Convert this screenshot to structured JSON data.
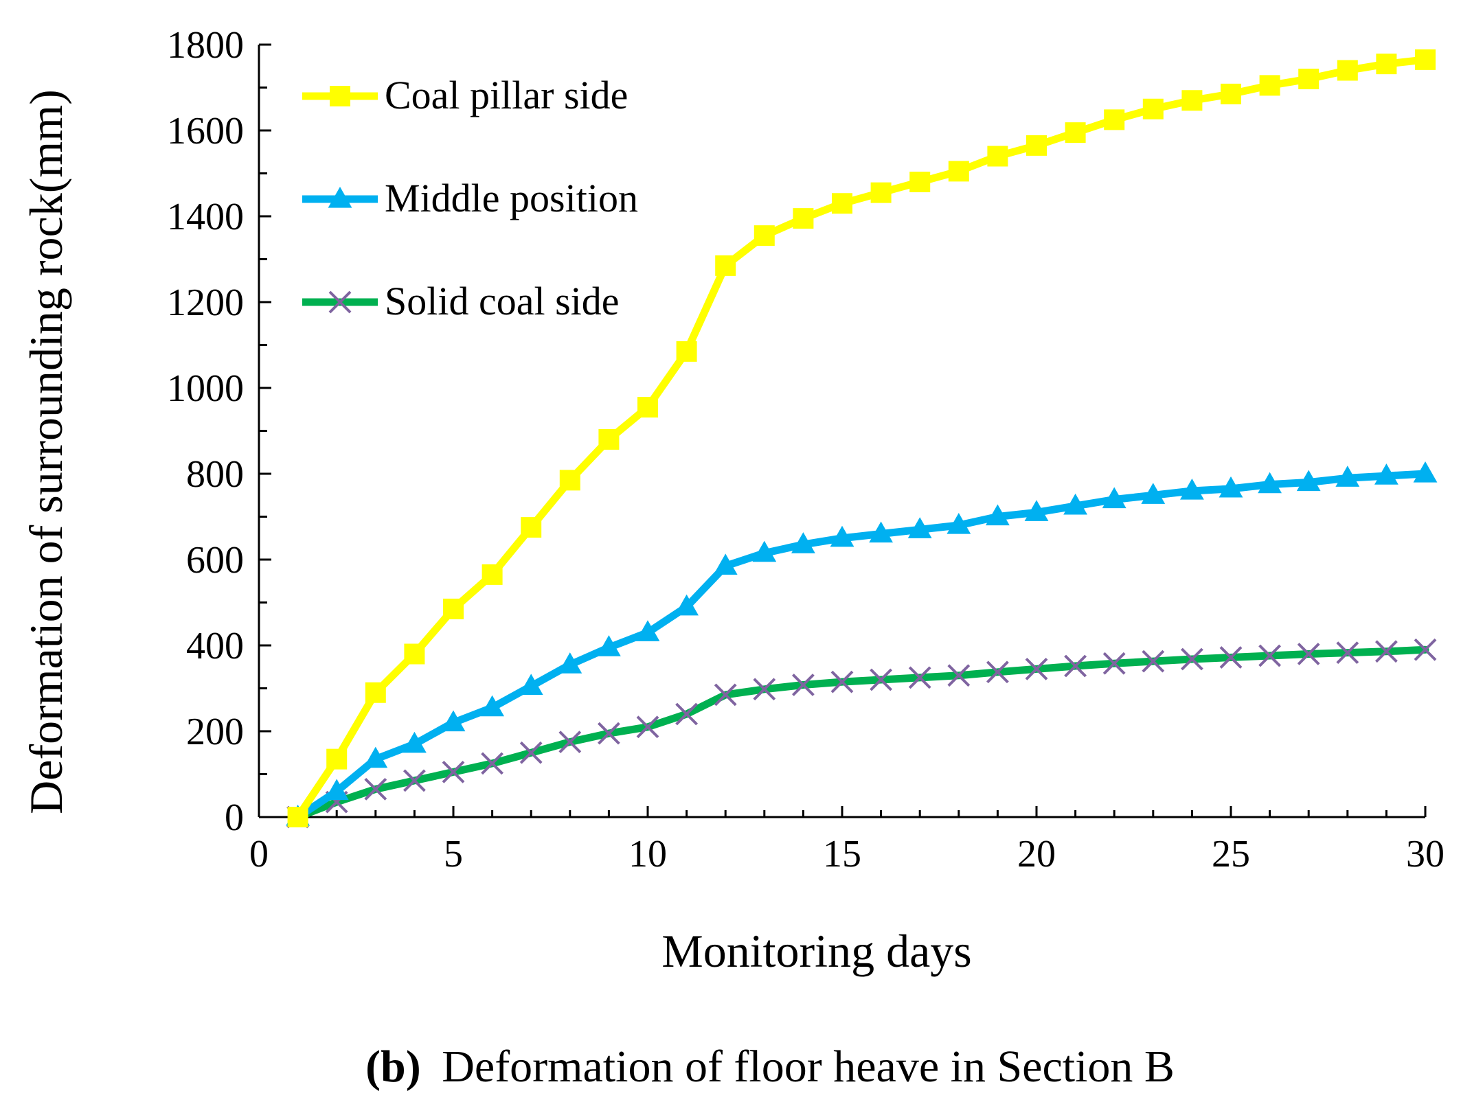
{
  "chart_data": {
    "type": "line",
    "title": "",
    "xlabel": "Monitoring days",
    "ylabel": "Deformation of surrounding rock(mm)",
    "xlim": [
      0,
      30
    ],
    "ylim": [
      0,
      1800
    ],
    "xticks": [
      0,
      5,
      10,
      15,
      20,
      25,
      30
    ],
    "yticks": [
      0,
      200,
      400,
      600,
      800,
      1000,
      1200,
      1400,
      1600,
      1800
    ],
    "grid": false,
    "legend_position": "top-left",
    "x": [
      1,
      2,
      3,
      4,
      5,
      6,
      7,
      8,
      9,
      10,
      11,
      12,
      13,
      14,
      15,
      16,
      17,
      18,
      19,
      20,
      21,
      22,
      23,
      24,
      25,
      26,
      27,
      28,
      29,
      30
    ],
    "series": [
      {
        "name": "Coal pillar side",
        "color": "#FFFF00",
        "marker": "square",
        "values": [
          0,
          135,
          290,
          380,
          485,
          565,
          675,
          785,
          880,
          955,
          1085,
          1285,
          1355,
          1395,
          1430,
          1455,
          1480,
          1505,
          1540,
          1565,
          1595,
          1625,
          1650,
          1670,
          1685,
          1705,
          1720,
          1740,
          1755,
          1765
        ]
      },
      {
        "name": "Middle position",
        "color": "#00B0F0",
        "marker": "triangle",
        "values": [
          0,
          60,
          135,
          170,
          220,
          255,
          305,
          355,
          395,
          430,
          490,
          585,
          615,
          635,
          650,
          660,
          670,
          680,
          700,
          710,
          725,
          740,
          750,
          760,
          765,
          775,
          780,
          790,
          795,
          800
        ]
      },
      {
        "name": "Solid coal side",
        "color": "#00B050",
        "marker_color": "#7F64A0",
        "marker": "x",
        "values": [
          0,
          35,
          65,
          85,
          105,
          125,
          150,
          175,
          195,
          210,
          240,
          285,
          298,
          308,
          315,
          320,
          325,
          330,
          338,
          345,
          352,
          358,
          363,
          368,
          372,
          376,
          380,
          383,
          386,
          390
        ]
      }
    ]
  },
  "caption": {
    "label": "(b)",
    "text": "Deformation of floor heave in Section B"
  }
}
